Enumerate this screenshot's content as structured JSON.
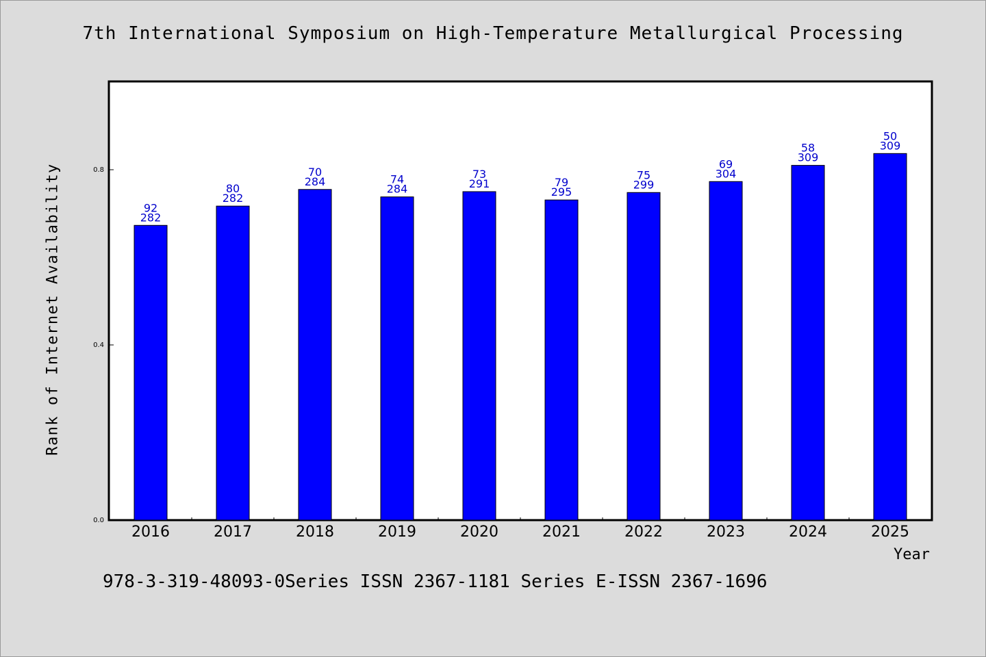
{
  "chart_data": {
    "type": "bar",
    "title": "7th International Symposium on High-Temperature Metallurgical Processing",
    "xlabel": "Year",
    "ylabel": "Rank of Internet Availability",
    "ylim": [
      0,
      1.0
    ],
    "yticks": [
      "0.0",
      "0.4",
      "0.8"
    ],
    "ytick_values": [
      0.0,
      0.4,
      0.8
    ],
    "categories": [
      "2016",
      "2017",
      "2018",
      "2019",
      "2020",
      "2021",
      "2022",
      "2023",
      "2024",
      "2025"
    ],
    "values": [
      0.673,
      0.717,
      0.755,
      0.738,
      0.75,
      0.731,
      0.748,
      0.773,
      0.81,
      0.837
    ],
    "labels_top": [
      "92",
      "80",
      "70",
      "74",
      "73",
      "79",
      "75",
      "69",
      "58",
      "50"
    ],
    "labels_bottom": [
      "282",
      "282",
      "284",
      "284",
      "291",
      "295",
      "299",
      "304",
      "309",
      "309"
    ],
    "bar_color": "#0000ff",
    "label_color": "#0000cc",
    "grid": false,
    "legend": "none"
  },
  "footer": "978-3-319-48093-0Series ISSN 2367-1181 Series E-ISSN 2367-1696"
}
